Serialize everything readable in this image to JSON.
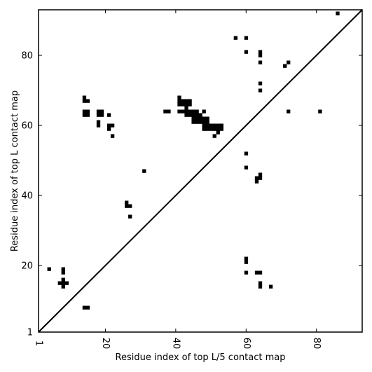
{
  "chart_data": {
    "type": "scatter",
    "title": "",
    "xlabel": "Residue index of top L/5 contact map",
    "ylabel": "Residue index of top L contact map",
    "xlim": [
      1,
      93
    ],
    "ylim": [
      1,
      93
    ],
    "x_ticks": [
      1,
      20,
      40,
      60,
      80
    ],
    "y_ticks": [
      1,
      20,
      40,
      60,
      80
    ],
    "marker": "square",
    "marker_color": "#000000",
    "diagonal_line": true,
    "series": [
      {
        "points": [
          [
            4,
            19
          ],
          [
            8,
            18
          ],
          [
            8,
            19
          ],
          [
            7,
            15
          ],
          [
            8,
            15
          ],
          [
            9,
            15
          ],
          [
            8,
            14
          ],
          [
            8,
            16
          ],
          [
            14,
            8
          ],
          [
            15,
            8
          ],
          [
            14,
            67
          ],
          [
            15,
            67
          ],
          [
            14,
            68
          ],
          [
            14,
            64
          ],
          [
            15,
            64
          ],
          [
            14,
            63
          ],
          [
            15,
            63
          ],
          [
            18,
            64
          ],
          [
            19,
            64
          ],
          [
            18,
            63
          ],
          [
            19,
            63
          ],
          [
            18,
            61
          ],
          [
            18,
            60
          ],
          [
            21,
            63
          ],
          [
            21,
            60
          ],
          [
            22,
            60
          ],
          [
            21,
            59
          ],
          [
            22,
            57
          ],
          [
            26,
            38
          ],
          [
            26,
            37
          ],
          [
            27,
            37
          ],
          [
            27,
            34
          ],
          [
            31,
            47
          ],
          [
            37,
            64
          ],
          [
            38,
            64
          ],
          [
            41,
            68
          ],
          [
            41,
            67
          ],
          [
            42,
            67
          ],
          [
            43,
            67
          ],
          [
            44,
            67
          ],
          [
            41,
            66
          ],
          [
            42,
            66
          ],
          [
            43,
            66
          ],
          [
            44,
            66
          ],
          [
            41,
            64
          ],
          [
            42,
            64
          ],
          [
            43,
            65
          ],
          [
            43,
            64
          ],
          [
            44,
            64
          ],
          [
            45,
            64
          ],
          [
            46,
            64
          ],
          [
            43,
            63
          ],
          [
            44,
            63
          ],
          [
            45,
            63
          ],
          [
            46,
            63
          ],
          [
            47,
            63
          ],
          [
            45,
            62
          ],
          [
            46,
            62
          ],
          [
            47,
            62
          ],
          [
            48,
            62
          ],
          [
            49,
            62
          ],
          [
            45,
            61
          ],
          [
            46,
            61
          ],
          [
            47,
            61
          ],
          [
            48,
            61
          ],
          [
            49,
            61
          ],
          [
            48,
            64
          ],
          [
            48,
            60
          ],
          [
            49,
            60
          ],
          [
            50,
            60
          ],
          [
            51,
            60
          ],
          [
            52,
            60
          ],
          [
            53,
            60
          ],
          [
            48,
            59
          ],
          [
            49,
            59
          ],
          [
            50,
            59
          ],
          [
            51,
            59
          ],
          [
            52,
            59
          ],
          [
            53,
            59
          ],
          [
            52,
            58
          ],
          [
            51,
            57
          ],
          [
            57,
            85
          ],
          [
            60,
            85
          ],
          [
            60,
            81
          ],
          [
            60,
            52
          ],
          [
            60,
            48
          ],
          [
            60,
            22
          ],
          [
            60,
            21
          ],
          [
            60,
            18
          ],
          [
            63,
            45
          ],
          [
            64,
            45
          ],
          [
            63,
            44
          ],
          [
            64,
            46
          ],
          [
            63,
            18
          ],
          [
            64,
            18
          ],
          [
            64,
            15
          ],
          [
            64,
            14
          ],
          [
            67,
            14
          ],
          [
            64,
            81
          ],
          [
            64,
            80
          ],
          [
            64,
            78
          ],
          [
            64,
            72
          ],
          [
            64,
            70
          ],
          [
            71,
            77
          ],
          [
            72,
            78
          ],
          [
            72,
            64
          ],
          [
            81,
            64
          ],
          [
            86,
            92
          ]
        ]
      }
    ]
  }
}
